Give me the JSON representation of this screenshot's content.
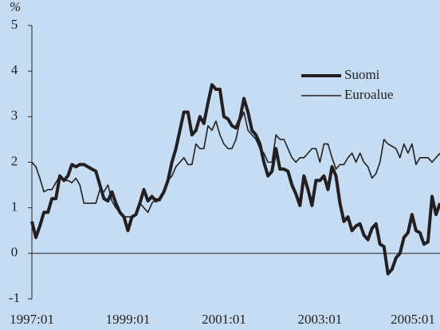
{
  "chart_data": {
    "type": "line",
    "y_label": "%",
    "x": [
      "1997:01",
      "1997:02",
      "1997:03",
      "1997:04",
      "1997:05",
      "1997:06",
      "1997:07",
      "1997:08",
      "1997:09",
      "1997:10",
      "1997:11",
      "1997:12",
      "1998:01",
      "1998:02",
      "1998:03",
      "1998:04",
      "1998:05",
      "1998:06",
      "1998:07",
      "1998:08",
      "1998:09",
      "1998:10",
      "1998:11",
      "1998:12",
      "1999:01",
      "1999:02",
      "1999:03",
      "1999:04",
      "1999:05",
      "1999:06",
      "1999:07",
      "1999:08",
      "1999:09",
      "1999:10",
      "1999:11",
      "1999:12",
      "2000:01",
      "2000:02",
      "2000:03",
      "2000:04",
      "2000:05",
      "2000:06",
      "2000:07",
      "2000:08",
      "2000:09",
      "2000:10",
      "2000:11",
      "2000:12",
      "2001:01",
      "2001:02",
      "2001:03",
      "2001:04",
      "2001:05",
      "2001:06",
      "2001:07",
      "2001:08",
      "2001:09",
      "2001:10",
      "2001:11",
      "2001:12",
      "2002:01",
      "2002:02",
      "2002:03",
      "2002:04",
      "2002:05",
      "2002:06",
      "2002:07",
      "2002:08",
      "2002:09",
      "2002:10",
      "2002:11",
      "2002:12",
      "2003:01",
      "2003:02",
      "2003:03",
      "2003:04",
      "2003:05",
      "2003:06",
      "2003:07",
      "2003:08",
      "2003:09",
      "2003:10",
      "2003:11",
      "2003:12",
      "2004:01",
      "2004:02",
      "2004:03",
      "2004:04",
      "2004:05",
      "2004:06",
      "2004:07",
      "2004:08",
      "2004:09",
      "2004:10",
      "2004:11",
      "2004:12",
      "2005:01",
      "2005:02",
      "2005:03",
      "2005:04",
      "2005:05",
      "2005:06",
      "2005:07"
    ],
    "series": [
      {
        "name": "Suomi",
        "color": "#231f20",
        "width": 4,
        "values": [
          0.7,
          0.35,
          0.6,
          0.9,
          0.9,
          1.2,
          1.2,
          1.7,
          1.6,
          1.7,
          1.95,
          1.9,
          1.95,
          1.95,
          1.9,
          1.85,
          1.8,
          1.5,
          1.2,
          1.15,
          1.35,
          1.1,
          0.9,
          0.8,
          0.5,
          0.8,
          0.85,
          1.1,
          1.4,
          1.15,
          1.25,
          1.15,
          1.2,
          1.35,
          1.6,
          2.0,
          2.3,
          2.7,
          3.1,
          3.1,
          2.6,
          2.7,
          3.0,
          2.85,
          3.3,
          3.7,
          3.6,
          3.6,
          3.0,
          2.95,
          2.8,
          2.75,
          2.95,
          3.4,
          3.1,
          2.7,
          2.6,
          2.4,
          2.0,
          1.7,
          1.8,
          2.3,
          1.85,
          1.85,
          1.8,
          1.5,
          1.3,
          1.05,
          1.7,
          1.4,
          1.05,
          1.6,
          1.6,
          1.7,
          1.4,
          1.9,
          1.7,
          1.1,
          0.7,
          0.8,
          0.5,
          0.6,
          0.65,
          0.4,
          0.3,
          0.55,
          0.65,
          0.2,
          0.15,
          -0.45,
          -0.35,
          -0.1,
          0.0,
          0.35,
          0.45,
          0.85,
          0.5,
          0.45,
          0.2,
          0.25,
          1.25,
          0.85,
          1.1
        ]
      },
      {
        "name": "Euroalue",
        "color": "#231f20",
        "width": 1.6,
        "values": [
          2.0,
          1.9,
          1.65,
          1.35,
          1.4,
          1.4,
          1.55,
          1.7,
          1.6,
          1.6,
          1.55,
          1.65,
          1.5,
          1.1,
          1.1,
          1.1,
          1.1,
          1.4,
          1.35,
          1.5,
          1.15,
          1.0,
          0.9,
          0.8,
          0.8,
          0.8,
          0.85,
          1.1,
          1.0,
          0.9,
          1.1,
          1.2,
          1.15,
          1.4,
          1.6,
          1.7,
          1.9,
          2.0,
          2.1,
          1.95,
          1.95,
          2.4,
          2.3,
          2.3,
          2.8,
          2.7,
          2.9,
          2.6,
          2.4,
          2.3,
          2.3,
          2.5,
          2.9,
          3.1,
          2.7,
          2.6,
          2.5,
          2.3,
          2.2,
          2.0,
          2.0,
          2.6,
          2.5,
          2.5,
          2.3,
          2.1,
          2.0,
          2.1,
          2.1,
          2.2,
          2.3,
          2.3,
          2.0,
          2.4,
          2.4,
          2.1,
          1.85,
          1.95,
          1.95,
          2.1,
          2.2,
          2.0,
          2.2,
          2.0,
          1.9,
          1.65,
          1.75,
          2.0,
          2.5,
          2.4,
          2.35,
          2.3,
          2.1,
          2.4,
          2.2,
          2.4,
          1.95,
          2.1,
          2.1,
          2.1,
          2.0,
          2.1,
          2.2
        ]
      }
    ],
    "ylim": [
      -1,
      5
    ],
    "yticks": [
      -1,
      0,
      1,
      2,
      3,
      4,
      5
    ],
    "xticks": [
      "1997:01",
      "1999:01",
      "2001:01",
      "2003:01",
      "2005:01"
    ],
    "background": "#c5dcf2"
  }
}
